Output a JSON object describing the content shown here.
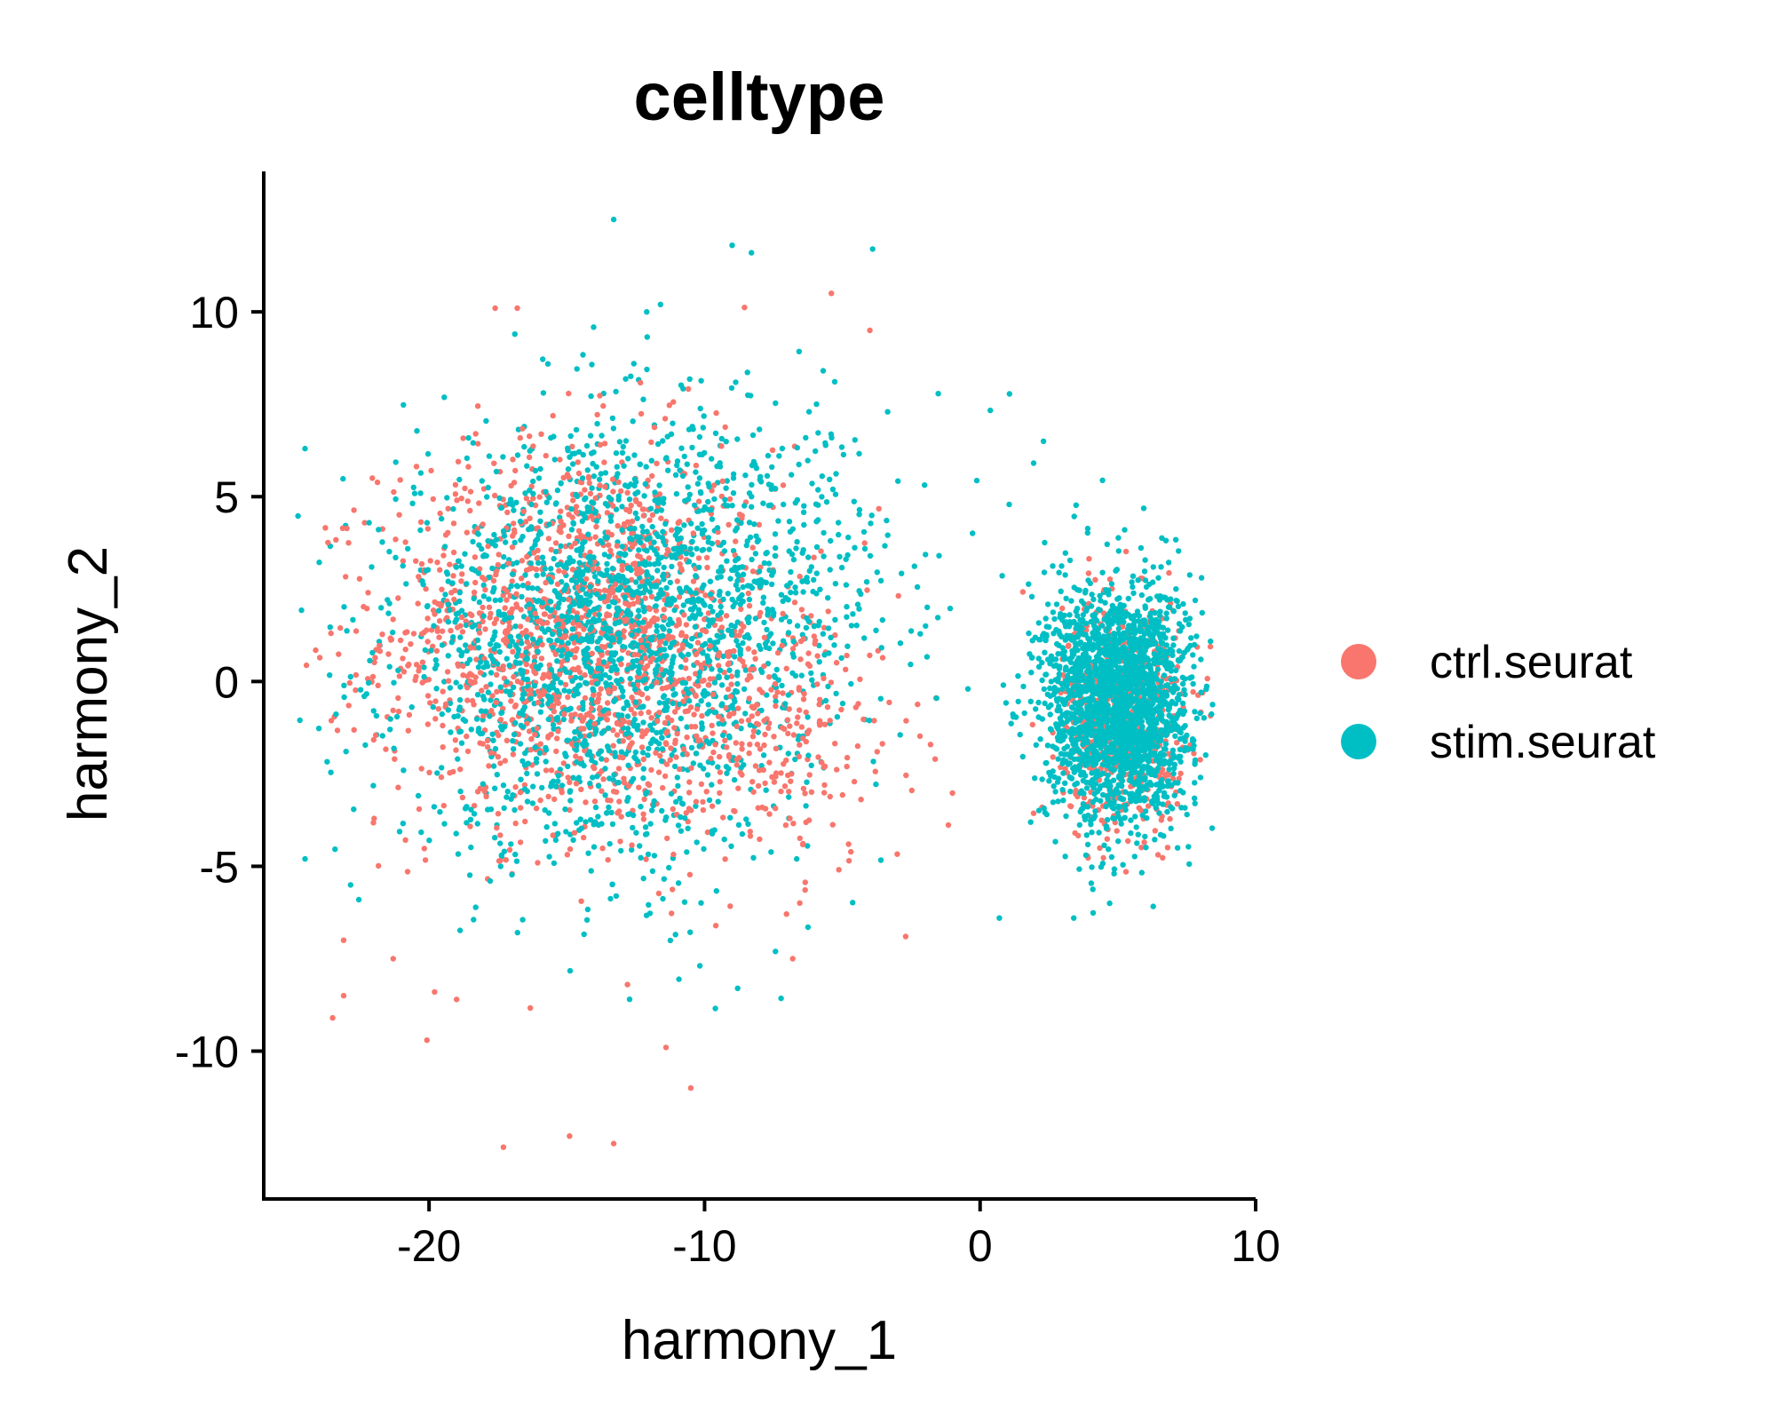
{
  "chart_data": {
    "type": "scatter",
    "title": "celltype",
    "xlabel": "harmony_1",
    "ylabel": "harmony_2",
    "xlim": [
      -26,
      10
    ],
    "ylim": [
      -14,
      13.8
    ],
    "xticks": [
      -20,
      -10,
      0,
      10
    ],
    "yticks": [
      -10,
      -5,
      0,
      5,
      10
    ],
    "xtick_labels": [
      "-20",
      "-10",
      "0",
      "10"
    ],
    "ytick_labels": [
      "-10",
      "-5",
      "0",
      "5",
      "10"
    ],
    "grid": false,
    "legend_position": "right",
    "series": [
      {
        "name": "ctrl.seurat",
        "color": "#F8766D",
        "clusters": [
          {
            "center": [
              -14.5,
              1.2
            ],
            "sd": [
              3.6,
              2.6
            ],
            "count": 1500
          },
          {
            "center": [
              5.2,
              -0.8
            ],
            "sd": [
              1.1,
              1.5
            ],
            "count": 700
          },
          {
            "center": [
              -7.5,
              -1.5
            ],
            "sd": [
              2.5,
              1.8
            ],
            "count": 250
          }
        ],
        "outliers": [
          [
            -17.3,
            -12.6
          ],
          [
            -14.9,
            -12.3
          ],
          [
            -13.3,
            -12.5
          ],
          [
            -11.4,
            -9.9
          ],
          [
            -10.5,
            -11.0
          ],
          [
            -23.5,
            -9.1
          ],
          [
            -23.1,
            -8.5
          ],
          [
            -19.8,
            -8.4
          ],
          [
            -21.3,
            -7.5
          ],
          [
            -23.1,
            -7.0
          ],
          [
            -5.4,
            10.5
          ],
          [
            -4.0,
            9.5
          ],
          [
            -17.6,
            10.1
          ],
          [
            -16.8,
            10.1
          ],
          [
            -2.7,
            -6.9
          ],
          [
            -19.0,
            -8.6
          ],
          [
            -6.8,
            -7.5
          ],
          [
            -12.8,
            -8.2
          ]
        ]
      },
      {
        "name": "stim.seurat",
        "color": "#00BFC4",
        "clusters": [
          {
            "center": [
              -13.5,
              1.0
            ],
            "sd": [
              3.8,
              2.8
            ],
            "count": 2000
          },
          {
            "center": [
              5.0,
              -0.6
            ],
            "sd": [
              1.3,
              1.6
            ],
            "count": 2200
          },
          {
            "center": [
              -8.0,
              3.5
            ],
            "sd": [
              3.2,
              2.2
            ],
            "count": 300
          }
        ],
        "outliers": [
          [
            -24.5,
            6.3
          ],
          [
            -24.5,
            -4.8
          ],
          [
            -13.3,
            12.5
          ],
          [
            -9.0,
            11.8
          ],
          [
            -3.9,
            11.7
          ],
          [
            -8.3,
            11.6
          ],
          [
            -11.6,
            10.2
          ],
          [
            0.7,
            -6.4
          ],
          [
            3.4,
            -6.4
          ],
          [
            4.7,
            -6.0
          ],
          [
            -8.8,
            -8.3
          ],
          [
            -12.1,
            10.0
          ],
          [
            2.3,
            6.5
          ]
        ]
      }
    ]
  }
}
